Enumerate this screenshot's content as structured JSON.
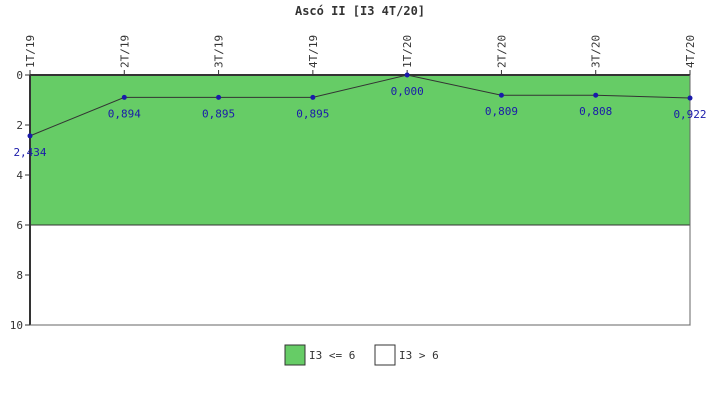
{
  "chart_data": {
    "type": "line",
    "title": "Ascó II [I3 4T/20]",
    "categories": [
      "1T/19",
      "2T/19",
      "3T/19",
      "4T/19",
      "1T/20",
      "2T/20",
      "3T/20",
      "4T/20"
    ],
    "series": [
      {
        "values": [
          2.434,
          0.894,
          0.895,
          0.895,
          0.0,
          0.809,
          0.808,
          0.922
        ],
        "labels": [
          "2,434",
          "0,894",
          "0,895",
          "0,895",
          "0,000",
          "0,809",
          "0,808",
          "0,922"
        ],
        "color": "#1a1aaa",
        "line_color": "#333333"
      }
    ],
    "ylim": [
      0,
      10
    ],
    "y_inverted": true,
    "yticks": [
      0,
      2,
      4,
      6,
      8,
      10
    ],
    "ytick_labels": [
      "0",
      "2",
      "4",
      "6",
      "8",
      "10"
    ],
    "bands": [
      {
        "from": 0,
        "to": 6,
        "color": "#66cc66",
        "label": "I3 <= 6"
      },
      {
        "from": 6,
        "to": 10,
        "color": "#ffffff",
        "label": "I3 > 6"
      }
    ],
    "grid": false,
    "legend_position": "bottom"
  }
}
